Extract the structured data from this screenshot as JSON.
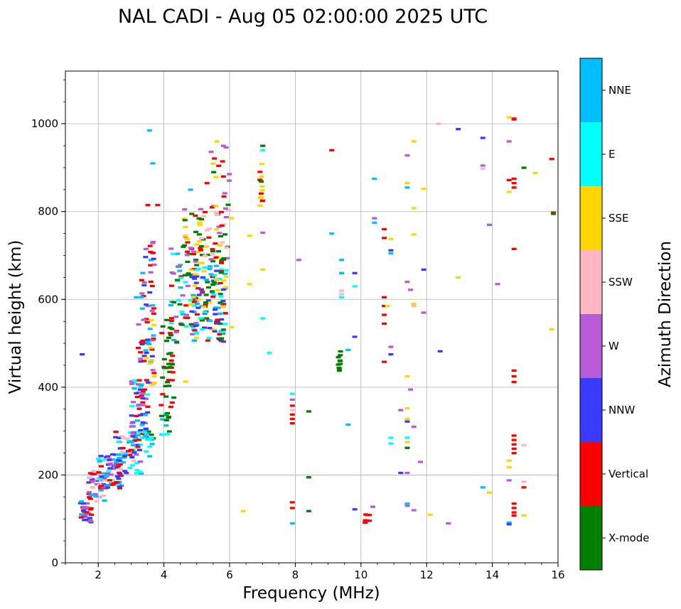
{
  "chart_data": {
    "type": "scatter",
    "title": "NAL CADI - Aug 05 02:00:00 2025 UTC",
    "xlabel": "Frequency (MHz)",
    "ylabel": "Virtual height (km)",
    "xlim": [
      1,
      16
    ],
    "ylim": [
      0,
      1120
    ],
    "xticks": [
      2,
      4,
      6,
      8,
      10,
      12,
      14,
      16
    ],
    "yticks": [
      0,
      200,
      400,
      600,
      800,
      1000
    ],
    "grid": true,
    "colorbar": {
      "label": "Azimuth Direction",
      "placement": "right",
      "categories": [
        {
          "name": "X-mode",
          "color": "#008000"
        },
        {
          "name": "Vertical",
          "color": "#ff0000"
        },
        {
          "name": "NNW",
          "color": "#3a3aff"
        },
        {
          "name": "W",
          "color": "#b85bd6"
        },
        {
          "name": "SSW",
          "color": "#ffb6c1"
        },
        {
          "name": "SSE",
          "color": "#ffd700"
        },
        {
          "name": "E",
          "color": "#00ffff"
        },
        {
          "name": "NNE",
          "color": "#00bfff"
        }
      ]
    },
    "clusters": [
      {
        "f": [
          1.45,
          1.8
        ],
        "h": [
          90,
          140
        ],
        "n": 30,
        "cats": [
          "NNE",
          "NNW",
          "Vertical",
          "W"
        ]
      },
      {
        "f": [
          1.7,
          2.2
        ],
        "h": [
          140,
          210
        ],
        "n": 45,
        "cats": [
          "Vertical",
          "NNW",
          "W",
          "NNE",
          "SSW"
        ]
      },
      {
        "f": [
          2.0,
          2.7
        ],
        "h": [
          170,
          250
        ],
        "n": 70,
        "cats": [
          "Vertical",
          "NNE",
          "W",
          "SSW",
          "NNW",
          "E"
        ]
      },
      {
        "f": [
          2.5,
          3.3
        ],
        "h": [
          200,
          300
        ],
        "n": 70,
        "cats": [
          "NNE",
          "E",
          "Vertical",
          "NNW",
          "W",
          "SSW"
        ]
      },
      {
        "f": [
          3.0,
          3.5
        ],
        "h": [
          280,
          420
        ],
        "n": 55,
        "cats": [
          "Vertical",
          "NNE",
          "NNW",
          "W",
          "E"
        ]
      },
      {
        "f": [
          3.2,
          3.7
        ],
        "h": [
          400,
          560
        ],
        "n": 45,
        "cats": [
          "Vertical",
          "NNW",
          "NNE",
          "W",
          "SSE"
        ]
      },
      {
        "f": [
          3.3,
          3.7
        ],
        "h": [
          560,
          760
        ],
        "n": 30,
        "cats": [
          "Vertical",
          "NNE",
          "W",
          "NNW"
        ]
      },
      {
        "f": [
          3.4,
          3.7
        ],
        "h": [
          240,
          300
        ],
        "n": 15,
        "cats": [
          "X-mode",
          "NNE",
          "E"
        ]
      },
      {
        "f": [
          3.9,
          4.2
        ],
        "h": [
          290,
          340
        ],
        "n": 10,
        "cats": [
          "NNE",
          "E",
          "X-mode"
        ]
      },
      {
        "f": [
          3.9,
          4.3
        ],
        "h": [
          330,
          560
        ],
        "n": 40,
        "cats": [
          "X-mode",
          "Vertical"
        ]
      },
      {
        "f": [
          4.2,
          5.0
        ],
        "h": [
          500,
          720
        ],
        "n": 70,
        "cats": [
          "X-mode",
          "Vertical",
          "NNE",
          "E",
          "W"
        ]
      },
      {
        "f": [
          4.5,
          5.2
        ],
        "h": [
          700,
          810
        ],
        "n": 30,
        "cats": [
          "X-mode",
          "Vertical",
          "SSE",
          "W"
        ]
      },
      {
        "f": [
          4.8,
          5.9
        ],
        "h": [
          500,
          680
        ],
        "n": 130,
        "cats": [
          "X-mode",
          "SSE",
          "E",
          "Vertical",
          "NNW",
          "NNE"
        ]
      },
      {
        "f": [
          5.0,
          6.0
        ],
        "h": [
          680,
          820
        ],
        "n": 55,
        "cats": [
          "X-mode",
          "Vertical",
          "SSE",
          "W",
          "SSW"
        ]
      },
      {
        "f": [
          5.4,
          6.0
        ],
        "h": [
          820,
          960
        ],
        "n": 12,
        "cats": [
          "SSE",
          "Vertical",
          "X-mode",
          "W"
        ]
      },
      {
        "f": [
          6.9,
          7.0
        ],
        "h": [
          810,
          910
        ],
        "n": 14,
        "cats": [
          "SSE",
          "X-mode",
          "Vertical"
        ]
      },
      {
        "f": [
          9.3,
          9.4
        ],
        "h": [
          435,
          495
        ],
        "n": 10,
        "cats": [
          "X-mode"
        ]
      },
      {
        "f": [
          10.1,
          10.3
        ],
        "h": [
          90,
          125
        ],
        "n": 7,
        "cats": [
          "Vertical"
        ]
      }
    ],
    "marks": [
      {
        "f": 6.4,
        "h": 118,
        "cat": "SSE"
      },
      {
        "f": 6.6,
        "h": 745,
        "cat": "SSE"
      },
      {
        "f": 6.6,
        "h": 635,
        "cat": "SSE"
      },
      {
        "f": 7.0,
        "h": 668,
        "cat": "SSE"
      },
      {
        "f": 7.0,
        "h": 752,
        "cat": "W"
      },
      {
        "f": 7.0,
        "h": 940,
        "cat": "E"
      },
      {
        "f": 7.0,
        "h": 950,
        "cat": "X-mode"
      },
      {
        "f": 7.2,
        "h": 478,
        "cat": "E"
      },
      {
        "f": 7.0,
        "h": 557,
        "cat": "E"
      },
      {
        "f": 7.9,
        "h": 318,
        "cat": "Vertical"
      },
      {
        "f": 7.9,
        "h": 328,
        "cat": "Vertical"
      },
      {
        "f": 7.9,
        "h": 338,
        "cat": "Vertical"
      },
      {
        "f": 7.9,
        "h": 348,
        "cat": "SSW"
      },
      {
        "f": 7.9,
        "h": 358,
        "cat": "Vertical"
      },
      {
        "f": 7.9,
        "h": 372,
        "cat": "W"
      },
      {
        "f": 7.9,
        "h": 385,
        "cat": "E"
      },
      {
        "f": 7.9,
        "h": 125,
        "cat": "Vertical"
      },
      {
        "f": 7.9,
        "h": 138,
        "cat": "Vertical"
      },
      {
        "f": 7.9,
        "h": 90,
        "cat": "NNE"
      },
      {
        "f": 8.1,
        "h": 690,
        "cat": "W"
      },
      {
        "f": 8.4,
        "h": 345,
        "cat": "X-mode"
      },
      {
        "f": 8.4,
        "h": 195,
        "cat": "X-mode"
      },
      {
        "f": 8.4,
        "h": 118,
        "cat": "X-mode"
      },
      {
        "f": 9.1,
        "h": 940,
        "cat": "Vertical"
      },
      {
        "f": 9.1,
        "h": 750,
        "cat": "NNE"
      },
      {
        "f": 9.4,
        "h": 690,
        "cat": "NNE"
      },
      {
        "f": 9.4,
        "h": 660,
        "cat": "NNE"
      },
      {
        "f": 9.4,
        "h": 620,
        "cat": "SSW"
      },
      {
        "f": 9.4,
        "h": 612,
        "cat": "SSW"
      },
      {
        "f": 9.4,
        "h": 605,
        "cat": "E"
      },
      {
        "f": 9.6,
        "h": 485,
        "cat": "NNE"
      },
      {
        "f": 9.6,
        "h": 315,
        "cat": "NNE"
      },
      {
        "f": 9.8,
        "h": 660,
        "cat": "NNW"
      },
      {
        "f": 9.8,
        "h": 630,
        "cat": "E"
      },
      {
        "f": 9.8,
        "h": 515,
        "cat": "NNW"
      },
      {
        "f": 9.8,
        "h": 122,
        "cat": "NNW"
      },
      {
        "f": 10.35,
        "h": 128,
        "cat": "W"
      },
      {
        "f": 10.4,
        "h": 875,
        "cat": "NNE"
      },
      {
        "f": 10.4,
        "h": 775,
        "cat": "NNE"
      },
      {
        "f": 10.4,
        "h": 785,
        "cat": "W"
      },
      {
        "f": 10.7,
        "h": 760,
        "cat": "Vertical"
      },
      {
        "f": 10.7,
        "h": 740,
        "cat": "Vertical"
      },
      {
        "f": 10.7,
        "h": 545,
        "cat": "Vertical"
      },
      {
        "f": 10.7,
        "h": 565,
        "cat": "Vertical"
      },
      {
        "f": 10.7,
        "h": 585,
        "cat": "Vertical"
      },
      {
        "f": 10.7,
        "h": 605,
        "cat": "Vertical"
      },
      {
        "f": 10.7,
        "h": 458,
        "cat": "Vertical"
      },
      {
        "f": 10.8,
        "h": 585,
        "cat": "SSE"
      },
      {
        "f": 10.9,
        "h": 738,
        "cat": "SSE"
      },
      {
        "f": 10.9,
        "h": 712,
        "cat": "NNW"
      },
      {
        "f": 10.9,
        "h": 705,
        "cat": "NNE"
      },
      {
        "f": 10.9,
        "h": 492,
        "cat": "W"
      },
      {
        "f": 10.9,
        "h": 475,
        "cat": "NNW"
      },
      {
        "f": 10.9,
        "h": 285,
        "cat": "E"
      },
      {
        "f": 10.9,
        "h": 272,
        "cat": "E"
      },
      {
        "f": 11.2,
        "h": 348,
        "cat": "W"
      },
      {
        "f": 11.2,
        "h": 205,
        "cat": "NNW"
      },
      {
        "f": 11.4,
        "h": 928,
        "cat": "W"
      },
      {
        "f": 11.4,
        "h": 865,
        "cat": "SSE"
      },
      {
        "f": 11.4,
        "h": 855,
        "cat": "NNE"
      },
      {
        "f": 11.4,
        "h": 640,
        "cat": "W"
      },
      {
        "f": 11.5,
        "h": 622,
        "cat": "W"
      },
      {
        "f": 11.4,
        "h": 425,
        "cat": "SSE"
      },
      {
        "f": 11.5,
        "h": 395,
        "cat": "W"
      },
      {
        "f": 11.4,
        "h": 352,
        "cat": "SSE"
      },
      {
        "f": 11.4,
        "h": 328,
        "cat": "SSE"
      },
      {
        "f": 11.4,
        "h": 322,
        "cat": "NNW"
      },
      {
        "f": 11.4,
        "h": 285,
        "cat": "E"
      },
      {
        "f": 11.4,
        "h": 275,
        "cat": "SSE"
      },
      {
        "f": 11.4,
        "h": 262,
        "cat": "X-mode"
      },
      {
        "f": 11.4,
        "h": 205,
        "cat": "W"
      },
      {
        "f": 11.4,
        "h": 135,
        "cat": "NNE"
      },
      {
        "f": 11.4,
        "h": 130,
        "cat": "W"
      },
      {
        "f": 11.6,
        "h": 960,
        "cat": "SSE"
      },
      {
        "f": 11.6,
        "h": 808,
        "cat": "SSE"
      },
      {
        "f": 11.6,
        "h": 748,
        "cat": "SSE"
      },
      {
        "f": 11.6,
        "h": 590,
        "cat": "SSE"
      },
      {
        "f": 11.6,
        "h": 585,
        "cat": "SSW"
      },
      {
        "f": 11.6,
        "h": 310,
        "cat": "W"
      },
      {
        "f": 11.6,
        "h": 120,
        "cat": "W"
      },
      {
        "f": 11.8,
        "h": 230,
        "cat": "W"
      },
      {
        "f": 11.9,
        "h": 852,
        "cat": "SSE"
      },
      {
        "f": 11.9,
        "h": 668,
        "cat": "NNW"
      },
      {
        "f": 11.9,
        "h": 570,
        "cat": "W"
      },
      {
        "f": 12.1,
        "h": 110,
        "cat": "SSE"
      },
      {
        "f": 12.35,
        "h": 1000,
        "cat": "SSW"
      },
      {
        "f": 12.4,
        "h": 482,
        "cat": "NNW"
      },
      {
        "f": 12.65,
        "h": 90,
        "cat": "W"
      },
      {
        "f": 12.95,
        "h": 988,
        "cat": "NNW"
      },
      {
        "f": 12.95,
        "h": 650,
        "cat": "SSE"
      },
      {
        "f": 13.7,
        "h": 968,
        "cat": "NNW"
      },
      {
        "f": 13.7,
        "h": 905,
        "cat": "W"
      },
      {
        "f": 13.7,
        "h": 898,
        "cat": "SSW"
      },
      {
        "f": 13.7,
        "h": 172,
        "cat": "NNE"
      },
      {
        "f": 13.9,
        "h": 770,
        "cat": "W"
      },
      {
        "f": 13.9,
        "h": 160,
        "cat": "SSE"
      },
      {
        "f": 14.15,
        "h": 635,
        "cat": "W"
      },
      {
        "f": 14.5,
        "h": 1015,
        "cat": "SSE"
      },
      {
        "f": 14.5,
        "h": 960,
        "cat": "W"
      },
      {
        "f": 14.5,
        "h": 872,
        "cat": "Vertical"
      },
      {
        "f": 14.5,
        "h": 845,
        "cat": "SSE"
      },
      {
        "f": 14.5,
        "h": 233,
        "cat": "SSE"
      },
      {
        "f": 14.5,
        "h": 218,
        "cat": "SSE"
      },
      {
        "f": 14.5,
        "h": 188,
        "cat": "W"
      },
      {
        "f": 14.5,
        "h": 92,
        "cat": "NNE"
      },
      {
        "f": 14.5,
        "h": 88,
        "cat": "NNW"
      },
      {
        "f": 14.65,
        "h": 1010,
        "cat": "Vertical"
      },
      {
        "f": 14.65,
        "h": 1012,
        "cat": "Vertical"
      },
      {
        "f": 14.65,
        "h": 875,
        "cat": "Vertical"
      },
      {
        "f": 14.65,
        "h": 865,
        "cat": "Vertical"
      },
      {
        "f": 14.65,
        "h": 855,
        "cat": "Vertical"
      },
      {
        "f": 14.65,
        "h": 715,
        "cat": "Vertical"
      },
      {
        "f": 14.65,
        "h": 438,
        "cat": "Vertical"
      },
      {
        "f": 14.65,
        "h": 425,
        "cat": "Vertical"
      },
      {
        "f": 14.65,
        "h": 412,
        "cat": "Vertical"
      },
      {
        "f": 14.65,
        "h": 290,
        "cat": "Vertical"
      },
      {
        "f": 14.65,
        "h": 280,
        "cat": "Vertical"
      },
      {
        "f": 14.65,
        "h": 270,
        "cat": "Vertical"
      },
      {
        "f": 14.65,
        "h": 260,
        "cat": "Vertical"
      },
      {
        "f": 14.65,
        "h": 250,
        "cat": "Vertical"
      },
      {
        "f": 14.65,
        "h": 135,
        "cat": "Vertical"
      },
      {
        "f": 14.65,
        "h": 125,
        "cat": "Vertical"
      },
      {
        "f": 14.65,
        "h": 115,
        "cat": "Vertical"
      },
      {
        "f": 14.65,
        "h": 108,
        "cat": "Vertical"
      },
      {
        "f": 14.95,
        "h": 900,
        "cat": "X-mode"
      },
      {
        "f": 14.95,
        "h": 268,
        "cat": "SSW"
      },
      {
        "f": 14.95,
        "h": 185,
        "cat": "SSW"
      },
      {
        "f": 14.95,
        "h": 172,
        "cat": "Vertical"
      },
      {
        "f": 14.95,
        "h": 108,
        "cat": "SSE"
      },
      {
        "f": 15.3,
        "h": 888,
        "cat": "SSE"
      },
      {
        "f": 15.8,
        "h": 920,
        "cat": "Vertical"
      },
      {
        "f": 15.85,
        "h": 798,
        "cat": "Vertical"
      },
      {
        "f": 15.85,
        "h": 795,
        "cat": "X-mode"
      },
      {
        "f": 15.8,
        "h": 532,
        "cat": "SSE"
      },
      {
        "f": 1.5,
        "h": 475,
        "cat": "NNW"
      },
      {
        "f": 3.55,
        "h": 985,
        "cat": "NNE"
      },
      {
        "f": 3.65,
        "h": 910,
        "cat": "NNE"
      },
      {
        "f": 3.5,
        "h": 815,
        "cat": "Vertical"
      },
      {
        "f": 3.8,
        "h": 815,
        "cat": "Vertical"
      },
      {
        "f": 3.7,
        "h": 410,
        "cat": "SSE"
      },
      {
        "f": 3.7,
        "h": 425,
        "cat": "SSE"
      },
      {
        "f": 3.15,
        "h": 605,
        "cat": "NNE"
      },
      {
        "f": 6.05,
        "h": 785,
        "cat": "SSE"
      },
      {
        "f": 6.05,
        "h": 537,
        "cat": "SSE"
      },
      {
        "f": 5.6,
        "h": 960,
        "cat": "SSE"
      },
      {
        "f": 5.8,
        "h": 950,
        "cat": "W"
      },
      {
        "f": 5.8,
        "h": 880,
        "cat": "Vertical"
      },
      {
        "f": 4.65,
        "h": 413,
        "cat": "SSE"
      },
      {
        "f": 4.8,
        "h": 850,
        "cat": "NNE"
      },
      {
        "f": 5.3,
        "h": 865,
        "cat": "Vertical"
      }
    ]
  }
}
